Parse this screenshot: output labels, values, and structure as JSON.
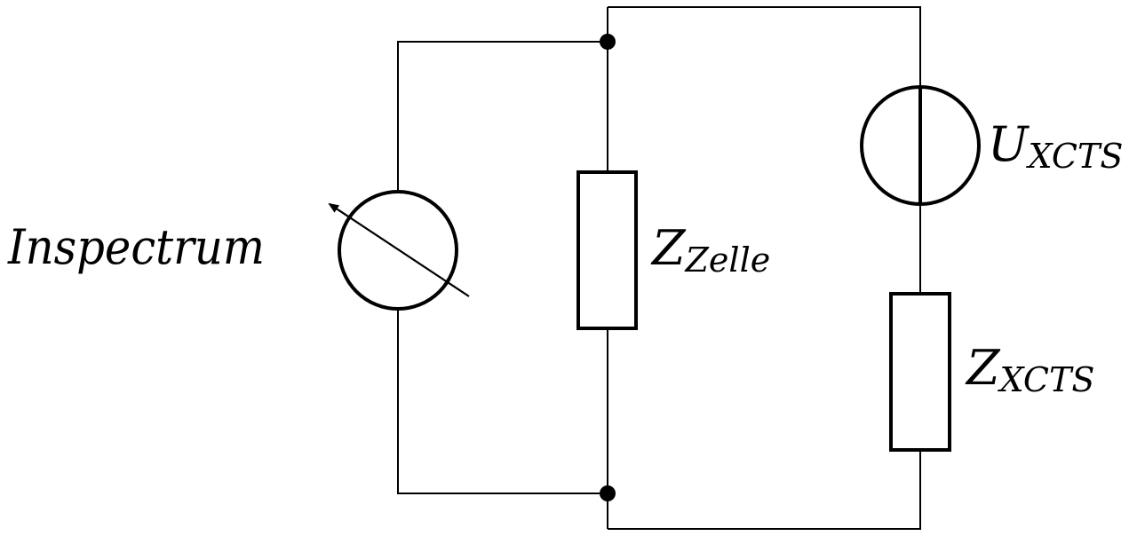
{
  "labels": {
    "meter": "Inspectrum",
    "cell_impedance": {
      "main": "Z",
      "sub": "Zelle"
    },
    "source_voltage": {
      "main": "U",
      "sub": "XCTS"
    },
    "source_impedance": {
      "main": "Z",
      "sub": "XCTS"
    }
  },
  "colors": {
    "line": "#000000",
    "background": "#ffffff"
  }
}
